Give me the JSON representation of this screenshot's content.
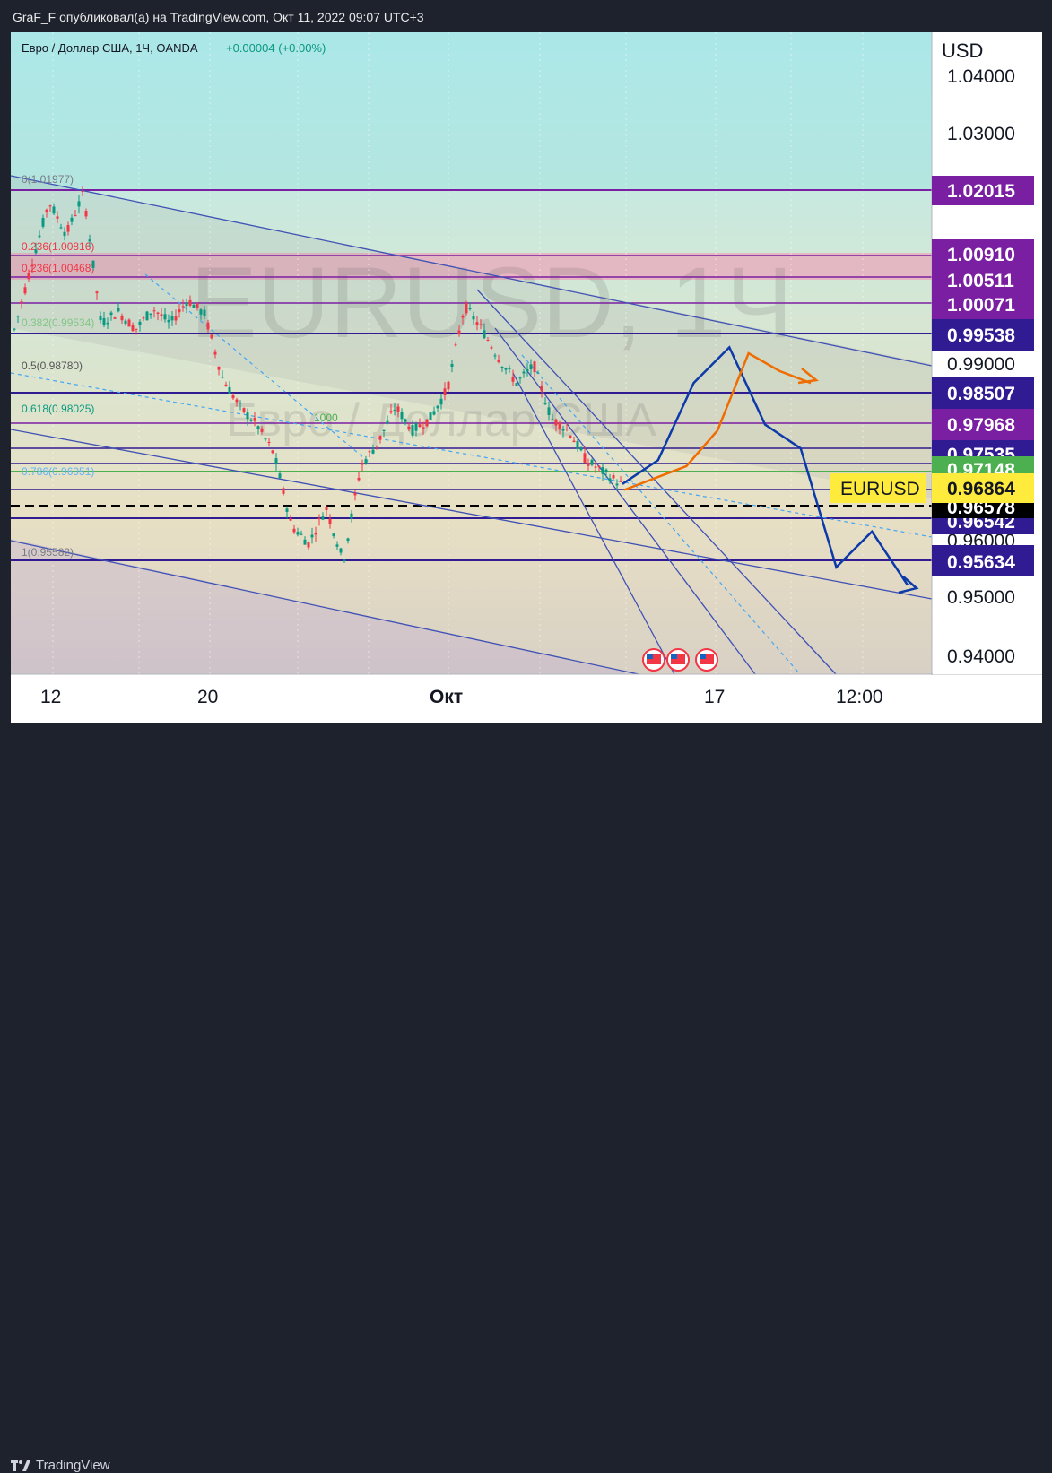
{
  "header": {
    "published_text": "GraF_F опубликовал(а) на TradingView.com, Окт 11, 2022 09:07 UTC+3"
  },
  "footer": {
    "brand": "TradingView"
  },
  "legend": {
    "symbol_text": "Евро / Доллар США, 1Ч, OANDA",
    "change_text": "+0.00004 (+0.00%)"
  },
  "watermark": {
    "symbol": "EURUSD, 1Ч",
    "description": "Евро / Доллар США"
  },
  "axis": {
    "currency": "USD",
    "y_ticks": [
      "1.04000",
      "1.03000",
      "0.99000",
      "0.95000",
      "0.94000"
    ],
    "partial_ticks": [
      "0.96000"
    ],
    "x_ticks": [
      "12",
      "20",
      "Окт",
      "17",
      "12:00"
    ]
  },
  "price_labels": [
    {
      "text": "1.02015",
      "color": "#7b1fa2"
    },
    {
      "text": "1.00910",
      "color": "#7b1fa2"
    },
    {
      "text": "1.00511",
      "color": "#7b1fa2"
    },
    {
      "text": "1.00071",
      "color": "#7b1fa2"
    },
    {
      "text": "0.99538",
      "color": "#311b92"
    },
    {
      "text": "0.98507",
      "color": "#311b92"
    },
    {
      "text": "0.97968",
      "color": "#7b1fa2"
    },
    {
      "text": "0.97535",
      "color": "#311b92"
    },
    {
      "text": "0.97148",
      "color": "#4caf50"
    },
    {
      "text": "0.96578",
      "color": "#000000"
    },
    {
      "text": "0.96542",
      "color": "#311b92"
    },
    {
      "text": "0.95634",
      "color": "#311b92"
    }
  ],
  "current_price": {
    "symbol": "EURUSD",
    "value": "0.96864"
  },
  "fib_levels": [
    {
      "label": "0(1.01977)",
      "color": "#787b86"
    },
    {
      "label": "0.236(1.00816)",
      "color": "#f23645"
    },
    {
      "label": "0.236(1.00468)",
      "color": "#f23645"
    },
    {
      "label": "0.382(0.99534)",
      "color": "#81c784"
    },
    {
      "label": "0.5(0.98780)",
      "color": "#555555"
    },
    {
      "label": "0.618(0.98025)",
      "color": "#089981"
    },
    {
      "label": "0.786(0.96951)",
      "color": "#64b5f6"
    },
    {
      "label": "1(0.95582)",
      "color": "#787b86"
    },
    {
      "label": "1000",
      "color": "#4caf50"
    }
  ],
  "colors": {
    "projection_blue": "#0d3aa9",
    "projection_orange": "#ef6c00",
    "level_line": "#311b92"
  },
  "chart_data": {
    "type": "candlestick",
    "title": "Евро / Доллар США, 1Ч, OANDA",
    "ylabel": "USD",
    "ylim": [
      0.937,
      1.045
    ],
    "price_path": [
      {
        "t": 0,
        "v": 0.995
      },
      {
        "t": 1,
        "v": 1.006
      },
      {
        "t": 2,
        "v": 1.0165
      },
      {
        "t": 3,
        "v": 1.011
      },
      {
        "t": 4,
        "v": 1.018
      },
      {
        "t": 5,
        "v": 0.996
      },
      {
        "t": 6,
        "v": 0.998
      },
      {
        "t": 7,
        "v": 0.995
      },
      {
        "t": 8,
        "v": 0.9985
      },
      {
        "t": 9,
        "v": 0.996
      },
      {
        "t": 10,
        "v": 1.0
      },
      {
        "t": 11,
        "v": 0.9975
      },
      {
        "t": 12,
        "v": 0.987
      },
      {
        "t": 13,
        "v": 0.982
      },
      {
        "t": 14,
        "v": 0.979
      },
      {
        "t": 15,
        "v": 0.974
      },
      {
        "t": 16,
        "v": 0.962
      },
      {
        "t": 17,
        "v": 0.959
      },
      {
        "t": 18,
        "v": 0.965
      },
      {
        "t": 19,
        "v": 0.956
      },
      {
        "t": 20,
        "v": 0.972
      },
      {
        "t": 21,
        "v": 0.976
      },
      {
        "t": 22,
        "v": 0.982
      },
      {
        "t": 23,
        "v": 0.978
      },
      {
        "t": 24,
        "v": 0.98
      },
      {
        "t": 25,
        "v": 0.985
      },
      {
        "t": 26,
        "v": 0.999
      },
      {
        "t": 27,
        "v": 0.995
      },
      {
        "t": 28,
        "v": 0.99
      },
      {
        "t": 29,
        "v": 0.986
      },
      {
        "t": 30,
        "v": 0.989
      },
      {
        "t": 31,
        "v": 0.98
      },
      {
        "t": 32,
        "v": 0.978
      },
      {
        "t": 33,
        "v": 0.973
      },
      {
        "t": 34,
        "v": 0.971
      },
      {
        "t": 35,
        "v": 0.969
      }
    ],
    "projection_blue": [
      0.969,
      0.973,
      0.986,
      0.992,
      0.979,
      0.975,
      0.955,
      0.961,
      0.952
    ],
    "projection_orange": [
      0.968,
      0.97,
      0.972,
      0.978,
      0.991,
      0.988,
      0.986
    ]
  }
}
